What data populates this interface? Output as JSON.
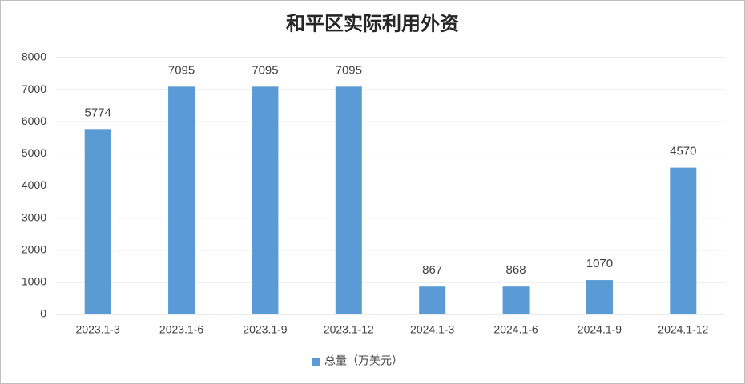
{
  "chart_data": {
    "type": "bar",
    "title": "和平区实际利用外资",
    "categories": [
      "2023.1-3",
      "2023.1-6",
      "2023.1-9",
      "2023.1-12",
      "2024.1-3",
      "2024.1-6",
      "2024.1-9",
      "2024.1-12"
    ],
    "series": [
      {
        "name": "总量（万美元）",
        "color": "#5b9bd5",
        "values": [
          5774,
          7095,
          7095,
          7095,
          867,
          868,
          1070,
          4570
        ]
      }
    ],
    "ylim": [
      0,
      8000
    ],
    "yticks": [
      0,
      1000,
      2000,
      3000,
      4000,
      5000,
      6000,
      7000,
      8000
    ],
    "grid": true,
    "legend": "bottom"
  }
}
